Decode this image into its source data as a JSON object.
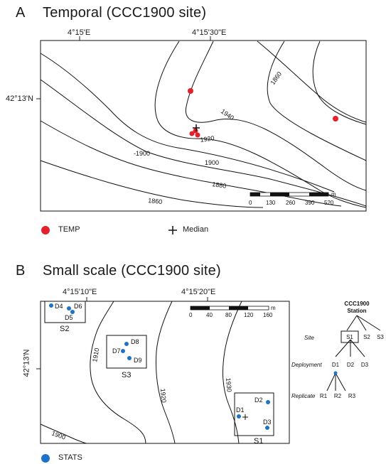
{
  "panel_a": {
    "letter": "A",
    "title": "Temporal (CCC1900 site)",
    "lon_labels": [
      "4°15'E",
      "4°15'30\"E"
    ],
    "lat_label": "42°13'N",
    "contour_labels": [
      "1860",
      "1940",
      "1920",
      "-1900",
      "1900",
      "1880",
      "1860"
    ],
    "scale_labels": [
      "0",
      "130",
      "260",
      "390",
      "520"
    ],
    "scale_unit": "m",
    "legend": {
      "temp_label": "TEMP",
      "median_label": "Median"
    },
    "colors": {
      "temp": "#e3212b",
      "median": "#111111"
    }
  },
  "panel_b": {
    "letter": "B",
    "title": "Small scale (CCC1900 site)",
    "lon_labels": [
      "4°15'10\"E",
      "4°15'20\"E"
    ],
    "lat_label": "42°13'N",
    "contour_labels": [
      "1910",
      "1920",
      "1930",
      "1900"
    ],
    "scale_labels": [
      "0",
      "40",
      "80",
      "120",
      "160"
    ],
    "scale_unit": "m",
    "stations": [
      {
        "label": "S2",
        "points": [
          "D4",
          "D6",
          "D5"
        ]
      },
      {
        "label": "S3",
        "points": [
          "D8",
          "D7",
          "D9"
        ]
      },
      {
        "label": "S1",
        "points": [
          "D2",
          "D1",
          "D3"
        ]
      }
    ],
    "legend": {
      "stats_label": "STATS"
    },
    "colors": {
      "stats": "#1f73c7"
    }
  },
  "hierarchy": {
    "root": "CCC1900\nStation",
    "root_line1": "CCC1900",
    "root_line2": "Station",
    "site_label": "Site",
    "sites": [
      "S1",
      "S2",
      "S3"
    ],
    "deployment_label": "Deployment",
    "deployments": [
      "D1",
      "D2",
      "D3"
    ],
    "replicate_label": "Replicate",
    "replicates": [
      "R1",
      "R2",
      "R3"
    ]
  }
}
